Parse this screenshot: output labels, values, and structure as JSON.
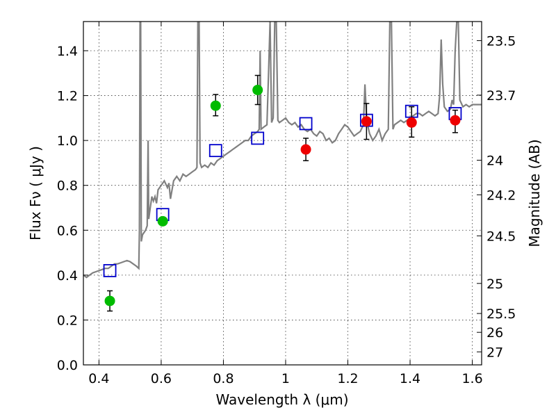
{
  "chart_data": {
    "type": "scatter",
    "xlabel": "Wavelength  λ (μm)",
    "ylabel": "Flux  Fν  ( μJy )",
    "right_ylabel": "Magnitude (AB)",
    "xlim": [
      0.35,
      1.63
    ],
    "ylim": [
      0.0,
      1.53
    ],
    "grid": true,
    "x_ticks": [
      0.4,
      0.6,
      0.8,
      1.0,
      1.2,
      1.4,
      1.6
    ],
    "x_tick_labels": [
      "0.4",
      "0.6",
      "0.8",
      "1",
      "1.2",
      "1.4",
      "1.6"
    ],
    "y_ticks": [
      0.0,
      0.2,
      0.4,
      0.6,
      0.8,
      1.0,
      1.2,
      1.4
    ],
    "y_tick_labels": [
      "0.0",
      "0.2",
      "0.4",
      "0.6",
      "0.8",
      "1.0",
      "1.2",
      "1.4"
    ],
    "right_ticks": [
      {
        "label": "23.5",
        "flux": 1.445
      },
      {
        "label": "23.7",
        "flux": 1.202
      },
      {
        "label": "24",
        "flux": 0.912
      },
      {
        "label": "24.2",
        "flux": 0.758
      },
      {
        "label": "24.5",
        "flux": 0.575
      },
      {
        "label": "25",
        "flux": 0.363
      },
      {
        "label": "25.5",
        "flux": 0.229
      },
      {
        "label": "26",
        "flux": 0.145
      },
      {
        "label": "27",
        "flux": 0.058
      }
    ],
    "colors": {
      "model": "#808080",
      "model_photometry": "#0000cc",
      "green": "#00bb00",
      "red": "#ee0000",
      "errorbar": "#000000"
    },
    "series": [
      {
        "kind": "line",
        "points": [
          [
            0.35,
            0.4
          ],
          [
            0.36,
            0.39
          ],
          [
            0.37,
            0.4
          ],
          [
            0.38,
            0.41
          ],
          [
            0.39,
            0.415
          ],
          [
            0.4,
            0.42
          ],
          [
            0.41,
            0.425
          ],
          [
            0.42,
            0.43
          ],
          [
            0.43,
            0.43
          ],
          [
            0.44,
            0.44
          ],
          [
            0.45,
            0.45
          ],
          [
            0.46,
            0.45
          ],
          [
            0.47,
            0.455
          ],
          [
            0.48,
            0.46
          ],
          [
            0.49,
            0.465
          ],
          [
            0.5,
            0.46
          ],
          [
            0.51,
            0.45
          ],
          [
            0.52,
            0.44
          ],
          [
            0.528,
            0.43
          ],
          [
            0.53,
            0.6
          ],
          [
            0.532,
            1.53
          ],
          [
            0.534,
            1.53
          ],
          [
            0.536,
            0.55
          ],
          [
            0.54,
            0.58
          ],
          [
            0.55,
            0.6
          ],
          [
            0.555,
            0.62
          ],
          [
            0.558,
            1.0
          ],
          [
            0.56,
            0.65
          ],
          [
            0.565,
            0.7
          ],
          [
            0.57,
            0.75
          ],
          [
            0.575,
            0.73
          ],
          [
            0.58,
            0.75
          ],
          [
            0.585,
            0.72
          ],
          [
            0.59,
            0.78
          ],
          [
            0.6,
            0.8
          ],
          [
            0.61,
            0.82
          ],
          [
            0.62,
            0.79
          ],
          [
            0.625,
            0.81
          ],
          [
            0.63,
            0.74
          ],
          [
            0.64,
            0.82
          ],
          [
            0.65,
            0.84
          ],
          [
            0.66,
            0.82
          ],
          [
            0.67,
            0.85
          ],
          [
            0.68,
            0.84
          ],
          [
            0.69,
            0.85
          ],
          [
            0.7,
            0.86
          ],
          [
            0.71,
            0.87
          ],
          [
            0.715,
            0.88
          ],
          [
            0.718,
            1.53
          ],
          [
            0.722,
            1.53
          ],
          [
            0.725,
            0.9
          ],
          [
            0.73,
            0.88
          ],
          [
            0.74,
            0.89
          ],
          [
            0.75,
            0.88
          ],
          [
            0.76,
            0.9
          ],
          [
            0.77,
            0.89
          ],
          [
            0.78,
            0.91
          ],
          [
            0.79,
            0.92
          ],
          [
            0.8,
            0.93
          ],
          [
            0.81,
            0.94
          ],
          [
            0.82,
            0.95
          ],
          [
            0.83,
            0.96
          ],
          [
            0.84,
            0.97
          ],
          [
            0.85,
            0.98
          ],
          [
            0.86,
            0.99
          ],
          [
            0.87,
            1.0
          ],
          [
            0.88,
            1.0
          ],
          [
            0.89,
            1.02
          ],
          [
            0.9,
            1.03
          ],
          [
            0.91,
            1.04
          ],
          [
            0.915,
            1.05
          ],
          [
            0.918,
            1.4
          ],
          [
            0.921,
            1.05
          ],
          [
            0.93,
            1.06
          ],
          [
            0.94,
            1.07
          ],
          [
            0.945,
            1.3
          ],
          [
            0.95,
            1.53
          ],
          [
            0.955,
            1.08
          ],
          [
            0.96,
            1.1
          ],
          [
            0.965,
            1.53
          ],
          [
            0.97,
            1.53
          ],
          [
            0.975,
            1.09
          ],
          [
            0.98,
            1.08
          ],
          [
            0.99,
            1.09
          ],
          [
            1.0,
            1.1
          ],
          [
            1.01,
            1.08
          ],
          [
            1.02,
            1.07
          ],
          [
            1.03,
            1.08
          ],
          [
            1.04,
            1.06
          ],
          [
            1.05,
            1.07
          ],
          [
            1.06,
            1.05
          ],
          [
            1.07,
            1.04
          ],
          [
            1.08,
            1.05
          ],
          [
            1.09,
            1.03
          ],
          [
            1.1,
            1.02
          ],
          [
            1.11,
            1.04
          ],
          [
            1.12,
            1.03
          ],
          [
            1.13,
            1.0
          ],
          [
            1.14,
            1.01
          ],
          [
            1.15,
            0.99
          ],
          [
            1.16,
            1.0
          ],
          [
            1.17,
            1.03
          ],
          [
            1.18,
            1.05
          ],
          [
            1.19,
            1.07
          ],
          [
            1.2,
            1.06
          ],
          [
            1.21,
            1.04
          ],
          [
            1.22,
            1.02
          ],
          [
            1.23,
            1.03
          ],
          [
            1.24,
            1.04
          ],
          [
            1.25,
            1.07
          ],
          [
            1.255,
            1.25
          ],
          [
            1.26,
            1.1
          ],
          [
            1.265,
            1.06
          ],
          [
            1.27,
            1.03
          ],
          [
            1.28,
            1.0
          ],
          [
            1.29,
            1.02
          ],
          [
            1.3,
            1.05
          ],
          [
            1.31,
            1.0
          ],
          [
            1.32,
            1.03
          ],
          [
            1.33,
            1.05
          ],
          [
            1.335,
            1.53
          ],
          [
            1.34,
            1.53
          ],
          [
            1.345,
            1.05
          ],
          [
            1.35,
            1.07
          ],
          [
            1.36,
            1.08
          ],
          [
            1.37,
            1.09
          ],
          [
            1.38,
            1.08
          ],
          [
            1.39,
            1.09
          ],
          [
            1.4,
            1.1
          ],
          [
            1.41,
            1.11
          ],
          [
            1.42,
            1.12
          ],
          [
            1.43,
            1.12
          ],
          [
            1.44,
            1.11
          ],
          [
            1.45,
            1.12
          ],
          [
            1.46,
            1.13
          ],
          [
            1.47,
            1.12
          ],
          [
            1.48,
            1.11
          ],
          [
            1.49,
            1.12
          ],
          [
            1.495,
            1.2
          ],
          [
            1.5,
            1.45
          ],
          [
            1.505,
            1.25
          ],
          [
            1.51,
            1.15
          ],
          [
            1.52,
            1.13
          ],
          [
            1.53,
            1.14
          ],
          [
            1.535,
            1.18
          ],
          [
            1.54,
            1.16
          ],
          [
            1.545,
            1.4
          ],
          [
            1.55,
            1.53
          ],
          [
            1.555,
            1.53
          ],
          [
            1.56,
            1.18
          ],
          [
            1.57,
            1.15
          ],
          [
            1.58,
            1.16
          ],
          [
            1.59,
            1.15
          ],
          [
            1.6,
            1.16
          ],
          [
            1.61,
            1.16
          ],
          [
            1.62,
            1.16
          ],
          [
            1.63,
            1.16
          ]
        ]
      },
      {
        "kind": "squares",
        "points": [
          [
            0.435,
            0.42
          ],
          [
            0.605,
            0.67
          ],
          [
            0.775,
            0.955
          ],
          [
            0.91,
            1.01
          ],
          [
            1.065,
            1.075
          ],
          [
            1.26,
            1.09
          ],
          [
            1.405,
            1.13
          ],
          [
            1.545,
            1.12
          ]
        ]
      },
      {
        "kind": "errorbar",
        "marker": "green",
        "points": [
          {
            "x": 0.435,
            "y": 0.285,
            "lo": 0.24,
            "hi": 0.33
          },
          {
            "x": 0.605,
            "y": 0.64,
            "lo": 0.625,
            "hi": 0.655
          },
          {
            "x": 0.775,
            "y": 1.155,
            "lo": 1.11,
            "hi": 1.205
          },
          {
            "x": 0.91,
            "y": 1.225,
            "lo": 1.16,
            "hi": 1.29
          }
        ]
      },
      {
        "kind": "errorbar",
        "marker": "red",
        "points": [
          {
            "x": 1.065,
            "y": 0.96,
            "lo": 0.91,
            "hi": 1.01
          },
          {
            "x": 1.26,
            "y": 1.085,
            "lo": 1.005,
            "hi": 1.165
          },
          {
            "x": 1.405,
            "y": 1.08,
            "lo": 1.015,
            "hi": 1.15
          },
          {
            "x": 1.545,
            "y": 1.09,
            "lo": 1.035,
            "hi": 1.135
          }
        ]
      }
    ]
  }
}
